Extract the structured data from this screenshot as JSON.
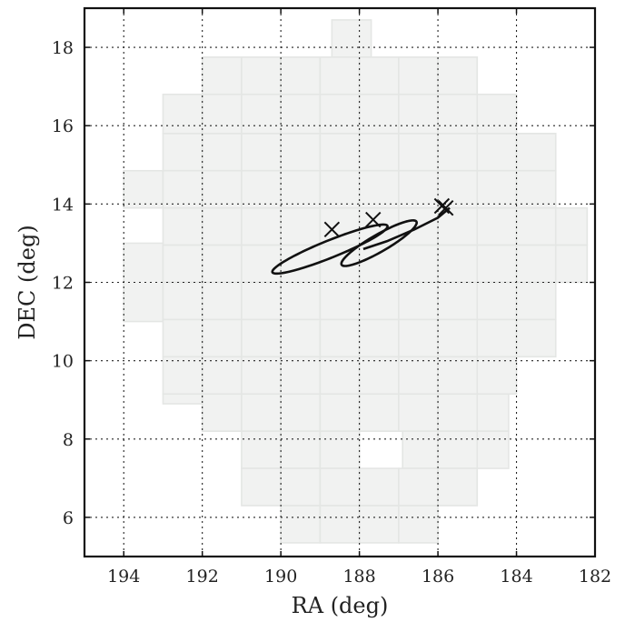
{
  "chart_data": {
    "type": "scatter",
    "title": "",
    "xlabel": "RA (deg)",
    "ylabel": "DEC (deg)",
    "xlim": [
      195,
      182
    ],
    "ylim": [
      5,
      19
    ],
    "x_inverted": true,
    "grid": true,
    "xticks": [
      194,
      192,
      190,
      188,
      186,
      184,
      182
    ],
    "yticks": [
      6,
      8,
      10,
      12,
      14,
      16,
      18
    ],
    "tile_color": "#f1f2f1",
    "line_color": "#111111",
    "coverage_tiles": [
      [
        188.7,
        187.7,
        17.75,
        18.7
      ],
      [
        192.0,
        191.0,
        16.75,
        17.75
      ],
      [
        191.0,
        190.0,
        16.75,
        17.75
      ],
      [
        190.0,
        189.0,
        16.75,
        17.75
      ],
      [
        189.0,
        188.0,
        16.75,
        17.75
      ],
      [
        188.0,
        187.0,
        16.75,
        17.75
      ],
      [
        187.0,
        186.0,
        16.75,
        17.75
      ],
      [
        186.0,
        185.0,
        16.75,
        17.75
      ],
      [
        193.0,
        192.0,
        15.8,
        16.8
      ],
      [
        192.0,
        191.0,
        15.8,
        16.8
      ],
      [
        191.0,
        190.0,
        15.8,
        16.8
      ],
      [
        190.0,
        189.0,
        15.8,
        16.8
      ],
      [
        189.0,
        188.0,
        15.8,
        16.8
      ],
      [
        188.0,
        187.0,
        15.8,
        16.8
      ],
      [
        187.0,
        186.0,
        15.8,
        16.8
      ],
      [
        186.0,
        185.0,
        15.8,
        16.8
      ],
      [
        185.0,
        184.0,
        15.8,
        16.8
      ],
      [
        193.0,
        192.0,
        14.85,
        15.8
      ],
      [
        192.0,
        191.0,
        14.85,
        15.8
      ],
      [
        191.0,
        190.0,
        14.85,
        15.8
      ],
      [
        190.0,
        189.0,
        14.85,
        15.8
      ],
      [
        189.0,
        188.0,
        14.85,
        15.8
      ],
      [
        188.0,
        187.0,
        14.85,
        15.8
      ],
      [
        187.0,
        186.0,
        14.85,
        15.8
      ],
      [
        186.0,
        185.0,
        14.85,
        15.8
      ],
      [
        185.0,
        184.0,
        14.85,
        15.8
      ],
      [
        184.0,
        183.0,
        14.85,
        15.8
      ],
      [
        194.0,
        193.0,
        13.9,
        14.85
      ],
      [
        193.0,
        192.0,
        13.9,
        14.85
      ],
      [
        192.0,
        191.0,
        13.9,
        14.85
      ],
      [
        191.0,
        190.0,
        13.9,
        14.85
      ],
      [
        190.0,
        189.0,
        13.9,
        14.85
      ],
      [
        189.0,
        188.0,
        13.9,
        14.85
      ],
      [
        188.0,
        187.0,
        13.9,
        14.85
      ],
      [
        187.0,
        186.0,
        13.9,
        14.85
      ],
      [
        186.0,
        185.0,
        13.9,
        14.85
      ],
      [
        185.0,
        184.0,
        13.9,
        14.85
      ],
      [
        184.0,
        183.0,
        13.9,
        14.85
      ],
      [
        193.0,
        192.0,
        12.95,
        13.9
      ],
      [
        192.0,
        191.0,
        12.95,
        13.9
      ],
      [
        191.0,
        190.0,
        12.95,
        13.9
      ],
      [
        190.0,
        189.0,
        12.95,
        13.9
      ],
      [
        189.0,
        188.0,
        12.95,
        13.9
      ],
      [
        188.0,
        187.0,
        12.95,
        13.9
      ],
      [
        187.0,
        186.0,
        12.95,
        13.9
      ],
      [
        186.0,
        185.0,
        12.95,
        13.9
      ],
      [
        185.0,
        184.0,
        12.95,
        13.9
      ],
      [
        184.0,
        183.0,
        12.95,
        13.9
      ],
      [
        183.0,
        182.2,
        12.95,
        13.9
      ],
      [
        194.0,
        193.0,
        11.0,
        13.0
      ],
      [
        193.0,
        192.0,
        12.0,
        12.95
      ],
      [
        192.0,
        191.0,
        12.0,
        12.95
      ],
      [
        191.0,
        190.0,
        12.0,
        12.95
      ],
      [
        190.0,
        189.0,
        12.0,
        12.95
      ],
      [
        189.0,
        188.0,
        12.0,
        12.95
      ],
      [
        188.0,
        187.0,
        12.0,
        12.95
      ],
      [
        187.0,
        186.0,
        12.0,
        12.95
      ],
      [
        186.0,
        185.0,
        12.0,
        12.95
      ],
      [
        185.0,
        184.0,
        12.0,
        12.95
      ],
      [
        184.0,
        183.0,
        12.0,
        12.95
      ],
      [
        183.0,
        182.2,
        12.0,
        12.95
      ],
      [
        193.0,
        192.0,
        11.05,
        12.0
      ],
      [
        192.0,
        191.0,
        11.05,
        12.0
      ],
      [
        191.0,
        190.0,
        11.05,
        12.0
      ],
      [
        190.0,
        189.0,
        11.05,
        12.0
      ],
      [
        189.0,
        188.0,
        11.05,
        12.0
      ],
      [
        188.0,
        187.0,
        11.05,
        12.0
      ],
      [
        187.0,
        186.0,
        11.05,
        12.0
      ],
      [
        186.0,
        185.0,
        11.05,
        12.0
      ],
      [
        185.0,
        184.0,
        11.05,
        12.0
      ],
      [
        184.0,
        183.0,
        11.05,
        12.0
      ],
      [
        193.0,
        192.0,
        10.1,
        11.05
      ],
      [
        192.0,
        191.0,
        10.1,
        11.05
      ],
      [
        191.0,
        190.0,
        10.1,
        11.05
      ],
      [
        190.0,
        189.0,
        10.1,
        11.05
      ],
      [
        189.0,
        188.0,
        10.1,
        11.05
      ],
      [
        188.0,
        187.0,
        10.1,
        11.05
      ],
      [
        187.0,
        186.0,
        10.1,
        11.05
      ],
      [
        186.0,
        185.0,
        10.1,
        11.05
      ],
      [
        185.0,
        184.0,
        10.1,
        11.05
      ],
      [
        184.0,
        183.0,
        10.1,
        11.05
      ],
      [
        193.0,
        192.0,
        9.15,
        10.1
      ],
      [
        192.0,
        191.0,
        9.15,
        10.1
      ],
      [
        191.0,
        190.0,
        9.15,
        10.1
      ],
      [
        190.0,
        189.0,
        9.15,
        10.1
      ],
      [
        189.0,
        188.0,
        9.15,
        10.1
      ],
      [
        188.0,
        187.0,
        9.15,
        10.1
      ],
      [
        187.0,
        186.0,
        9.15,
        10.1
      ],
      [
        186.0,
        185.0,
        9.15,
        10.1
      ],
      [
        185.0,
        184.0,
        9.15,
        10.1
      ],
      [
        193.0,
        192.0,
        8.9,
        9.15
      ],
      [
        192.0,
        191.0,
        8.2,
        9.15
      ],
      [
        191.0,
        190.0,
        8.2,
        9.15
      ],
      [
        190.0,
        189.0,
        8.2,
        9.15
      ],
      [
        189.0,
        188.0,
        8.2,
        9.15
      ],
      [
        188.0,
        187.0,
        8.2,
        9.15
      ],
      [
        187.0,
        186.0,
        8.2,
        9.15
      ],
      [
        186.0,
        185.0,
        8.2,
        9.15
      ],
      [
        185.0,
        184.2,
        8.2,
        9.15
      ],
      [
        191.0,
        190.0,
        7.25,
        8.2
      ],
      [
        190.0,
        189.0,
        7.25,
        8.2
      ],
      [
        189.0,
        188.0,
        7.25,
        8.2
      ],
      [
        186.9,
        186.0,
        7.25,
        8.2
      ],
      [
        186.0,
        185.0,
        7.25,
        8.2
      ],
      [
        185.0,
        184.2,
        7.25,
        8.2
      ],
      [
        191.0,
        190.0,
        6.3,
        7.25
      ],
      [
        190.0,
        189.0,
        6.3,
        7.25
      ],
      [
        189.0,
        188.0,
        6.3,
        7.25
      ],
      [
        188.0,
        187.0,
        6.3,
        7.25
      ],
      [
        187.0,
        186.0,
        6.3,
        7.25
      ],
      [
        186.0,
        185.0,
        6.3,
        7.25
      ],
      [
        190.0,
        189.0,
        5.35,
        6.3
      ],
      [
        189.0,
        188.0,
        5.35,
        6.3
      ],
      [
        188.0,
        187.0,
        5.35,
        6.3
      ],
      [
        187.0,
        186.0,
        5.35,
        6.3
      ]
    ],
    "ellipses": [
      {
        "cx": 188.75,
        "cy": 12.85,
        "a": 1.58,
        "b": 0.22,
        "angle_deg": 22
      },
      {
        "cx": 187.5,
        "cy": 13.0,
        "a": 1.1,
        "b": 0.22,
        "angle_deg": 30
      }
    ],
    "tail_curve": [
      [
        187.9,
        12.85
      ],
      [
        187.3,
        13.05
      ],
      [
        186.6,
        13.35
      ],
      [
        186.0,
        13.65
      ],
      [
        185.7,
        13.9
      ]
    ],
    "markers": [
      {
        "x": 188.7,
        "y": 13.35
      },
      {
        "x": 187.65,
        "y": 13.6
      },
      {
        "x": 185.9,
        "y": 13.95
      },
      {
        "x": 185.8,
        "y": 13.9
      }
    ]
  }
}
